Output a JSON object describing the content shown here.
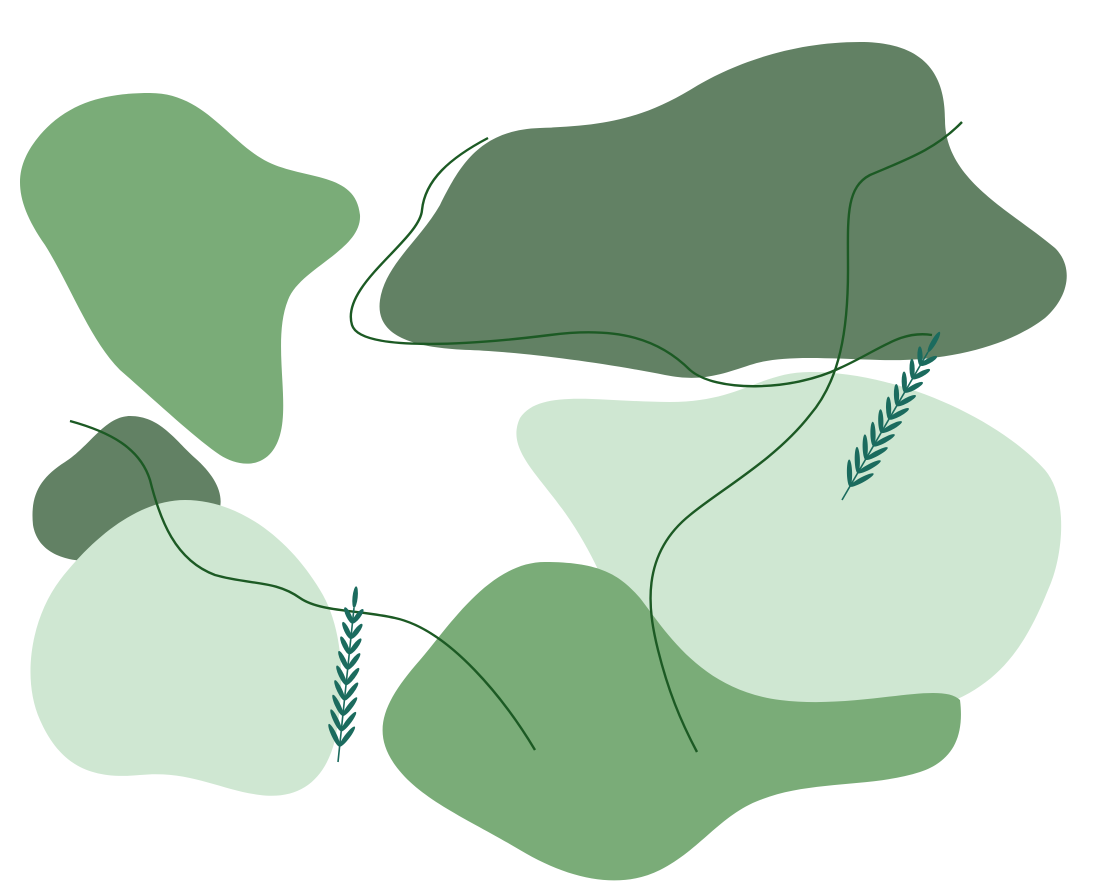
{
  "colors": {
    "background": "#ffffff",
    "medium_green": "#7aac78",
    "dark_green": "#628164",
    "pale_green": "#cfe7d2",
    "vine_stroke": "#1c5a24",
    "sprig_teal": "#1b6b5e"
  }
}
